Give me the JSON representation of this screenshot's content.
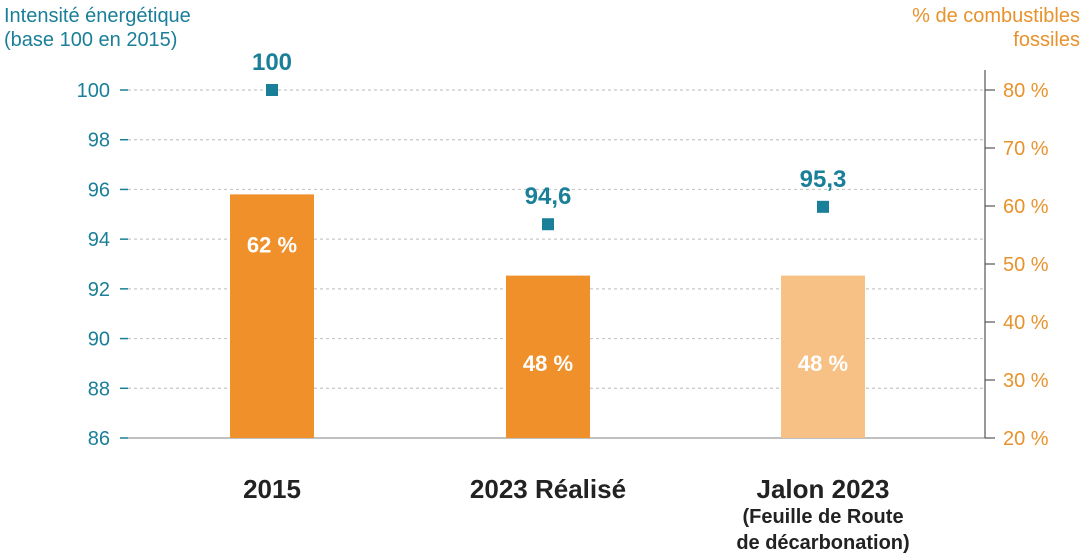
{
  "chart_data": {
    "type": "bar",
    "categories": [
      {
        "label": "2015",
        "sublabel": []
      },
      {
        "label": "2023 Réalisé",
        "sublabel": []
      },
      {
        "label": "Jalon 2023",
        "sublabel": [
          "(Feuille de Route",
          "de décarbonation)"
        ]
      }
    ],
    "y_left": {
      "title": [
        "Intensité énergétique",
        "(base 100 en 2015)"
      ],
      "ylim": [
        86,
        100
      ],
      "ticks": [
        86,
        88,
        90,
        92,
        94,
        96,
        98,
        100
      ],
      "color": "#1a7f98"
    },
    "y_right": {
      "title": [
        "% de combustibles",
        "fossiles"
      ],
      "ylim": [
        20,
        80
      ],
      "ticks": [
        "20 %",
        "30 %",
        "40 %",
        "50 %",
        "60 %",
        "70 %",
        "80 %"
      ],
      "tick_values": [
        20,
        30,
        40,
        50,
        60,
        70,
        80
      ],
      "color": "#e8922b"
    },
    "series": [
      {
        "axis": "right",
        "kind": "bar",
        "values": [
          62,
          48,
          48
        ],
        "labels": [
          "62 %",
          "48 %",
          "48 %"
        ],
        "colors": [
          "#f0902a",
          "#f0902a",
          "#f7c084"
        ]
      },
      {
        "axis": "left",
        "kind": "point",
        "values": [
          100,
          94.6,
          95.3
        ],
        "labels": [
          "100",
          "94,6",
          "95,3"
        ],
        "color": "#1a7f98"
      }
    ],
    "grid": true
  }
}
